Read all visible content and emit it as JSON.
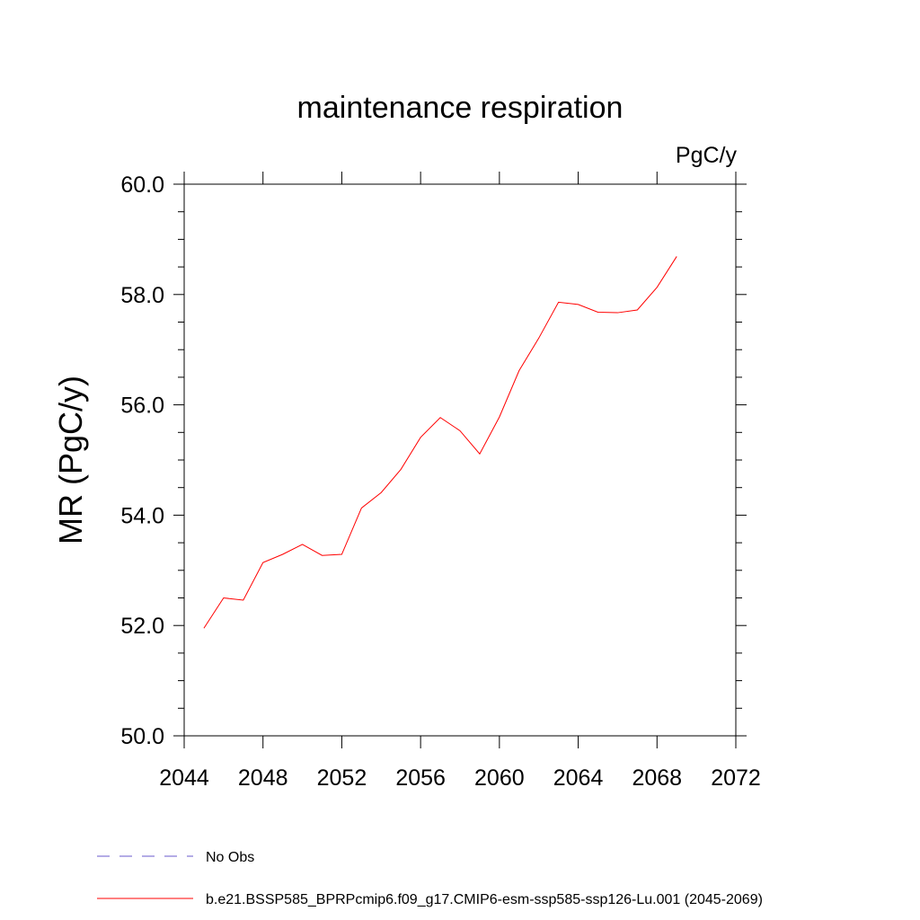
{
  "chart_data": {
    "type": "line",
    "title": "maintenance respiration",
    "units": "PgC/y",
    "ylabel": "MR  (PgC/y)",
    "xlabel": "",
    "xlim": [
      2044,
      2072
    ],
    "ylim": [
      50.0,
      60.0
    ],
    "x_ticks": [
      2044,
      2048,
      2052,
      2056,
      2060,
      2064,
      2068,
      2072
    ],
    "x_tick_labels": [
      "2044",
      "2048",
      "2052",
      "2056",
      "2060",
      "2064",
      "2068",
      "2072"
    ],
    "y_ticks": [
      50.0,
      52.0,
      54.0,
      56.0,
      58.0,
      60.0
    ],
    "y_tick_labels": [
      "50.0",
      "52.0",
      "54.0",
      "56.0",
      "58.0",
      "60.0"
    ],
    "grid": false,
    "legend_position": "bottom",
    "series": [
      {
        "name": "b.e21.BSSP585_BPRPcmip6.f09_g17.CMIP6-esm-ssp585-ssp126-Lu.001 (2045-2069)",
        "color": "#ff0000",
        "style": "solid",
        "x": [
          2045,
          2046,
          2047,
          2048,
          2049,
          2050,
          2051,
          2052,
          2053,
          2054,
          2055,
          2056,
          2057,
          2058,
          2059,
          2060,
          2061,
          2062,
          2063,
          2064,
          2065,
          2066,
          2067,
          2068,
          2069
        ],
        "y": [
          51.95,
          52.5,
          52.46,
          53.14,
          53.29,
          53.47,
          53.27,
          53.29,
          54.13,
          54.41,
          54.83,
          55.41,
          55.77,
          55.53,
          55.11,
          55.78,
          56.62,
          57.21,
          57.86,
          57.82,
          57.68,
          57.67,
          57.72,
          58.13,
          58.69
        ]
      }
    ],
    "legend": [
      {
        "label": "No Obs",
        "color": "#6a5acd",
        "style": "dashed"
      },
      {
        "label": "b.e21.BSSP585_BPRPcmip6.f09_g17.CMIP6-esm-ssp585-ssp126-Lu.001 (2045-2069)",
        "color": "#ff0000",
        "style": "solid"
      }
    ]
  }
}
